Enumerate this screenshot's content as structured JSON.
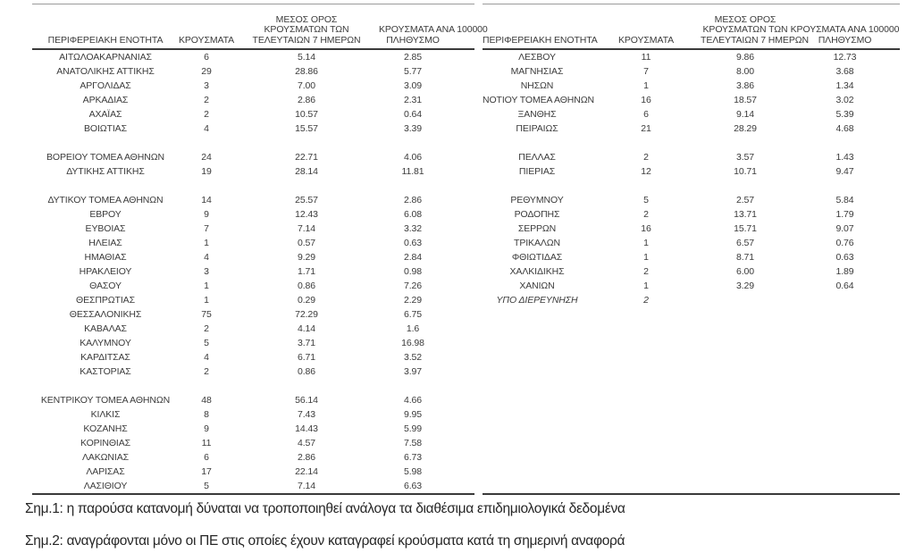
{
  "colors": {
    "background": "#ffffff",
    "table_text": "#3b3b3b",
    "rule_light": "#9a9a9a",
    "rule_dark": "#3a3a3a",
    "note_text": "#262626"
  },
  "table_headers": {
    "regional_unit": "ΠΕΡΙΦΕΡΕΙΑΚΗ ΕΝΟΤΗΤΑ",
    "cases": "ΚΡΟΥΣΜΑΤΑ",
    "avg7_lines": [
      "ΜΕΣΟΣ ΟΡΟΣ",
      "ΚΡΟΥΣΜΑΤΩΝ ΤΩΝ",
      "ΤΕΛΕΥΤΑΙΩΝ 7 ΗΜΕΡΩΝ"
    ],
    "per100k_lines": [
      "ΚΡΟΥΣΜΑΤΑ ΑΝΑ 100000",
      "ΠΛΗΘΥΣΜΟ"
    ]
  },
  "tables": {
    "left": {
      "rows": [
        {
          "region": "ΑΙΤΩΛΟΑΚΑΡΝΑΝΙΑΣ",
          "cases": "6",
          "avg7": "5.14",
          "per100k": "2.85"
        },
        {
          "region": "ΑΝΑΤΟΛΙΚΗΣ ΑΤΤΙΚΗΣ",
          "cases": "29",
          "avg7": "28.86",
          "per100k": "5.77"
        },
        {
          "region": "ΑΡΓΟΛΙΔΑΣ",
          "cases": "3",
          "avg7": "7.00",
          "per100k": "3.09"
        },
        {
          "region": "ΑΡΚΑΔΙΑΣ",
          "cases": "2",
          "avg7": "2.86",
          "per100k": "2.31"
        },
        {
          "region": "ΑΧΑΪΑΣ",
          "cases": "2",
          "avg7": "10.57",
          "per100k": "0.64"
        },
        {
          "region": "ΒΟΙΩΤΙΑΣ",
          "cases": "4",
          "avg7": "15.57",
          "per100k": "3.39"
        },
        null,
        {
          "region": "ΒΟΡΕΙΟΥ ΤΟΜΕΑ ΑΘΗΝΩΝ",
          "cases": "24",
          "avg7": "22.71",
          "per100k": "4.06"
        },
        {
          "region": "ΔΥΤΙΚΗΣ ΑΤΤΙΚΗΣ",
          "cases": "19",
          "avg7": "28.14",
          "per100k": "11.81"
        },
        null,
        {
          "region": "ΔΥΤΙΚΟΥ ΤΟΜΕΑ ΑΘΗΝΩΝ",
          "cases": "14",
          "avg7": "25.57",
          "per100k": "2.86"
        },
        {
          "region": "ΕΒΡΟΥ",
          "cases": "9",
          "avg7": "12.43",
          "per100k": "6.08"
        },
        {
          "region": "ΕΥΒΟΙΑΣ",
          "cases": "7",
          "avg7": "7.14",
          "per100k": "3.32"
        },
        {
          "region": "ΗΛΕΙΑΣ",
          "cases": "1",
          "avg7": "0.57",
          "per100k": "0.63"
        },
        {
          "region": "ΗΜΑΘΙΑΣ",
          "cases": "4",
          "avg7": "9.29",
          "per100k": "2.84"
        },
        {
          "region": "ΗΡΑΚΛΕΙΟΥ",
          "cases": "3",
          "avg7": "1.71",
          "per100k": "0.98"
        },
        {
          "region": "ΘΑΣΟΥ",
          "cases": "1",
          "avg7": "0.86",
          "per100k": "7.26"
        },
        {
          "region": "ΘΕΣΠΡΩΤΙΑΣ",
          "cases": "1",
          "avg7": "0.29",
          "per100k": "2.29"
        },
        {
          "region": "ΘΕΣΣΑΛΟΝΙΚΗΣ",
          "cases": "75",
          "avg7": "72.29",
          "per100k": "6.75"
        },
        {
          "region": "ΚΑΒΑΛΑΣ",
          "cases": "2",
          "avg7": "4.14",
          "per100k": "1.6"
        },
        {
          "region": "ΚΑΛΥΜΝΟΥ",
          "cases": "5",
          "avg7": "3.71",
          "per100k": "16.98"
        },
        {
          "region": "ΚΑΡΔΙΤΣΑΣ",
          "cases": "4",
          "avg7": "6.71",
          "per100k": "3.52"
        },
        {
          "region": "ΚΑΣΤΟΡΙΑΣ",
          "cases": "2",
          "avg7": "0.86",
          "per100k": "3.97"
        },
        null,
        {
          "region": "ΚΕΝΤΡΙΚΟΥ ΤΟΜΕΑ ΑΘΗΝΩΝ",
          "cases": "48",
          "avg7": "56.14",
          "per100k": "4.66"
        },
        {
          "region": "ΚΙΛΚΙΣ",
          "cases": "8",
          "avg7": "7.43",
          "per100k": "9.95"
        },
        {
          "region": "ΚΟΖΑΝΗΣ",
          "cases": "9",
          "avg7": "14.43",
          "per100k": "5.99"
        },
        {
          "region": "ΚΟΡΙΝΘΙΑΣ",
          "cases": "11",
          "avg7": "4.57",
          "per100k": "7.58"
        },
        {
          "region": "ΛΑΚΩΝΙΑΣ",
          "cases": "6",
          "avg7": "2.86",
          "per100k": "6.73"
        },
        {
          "region": "ΛΑΡΙΣΑΣ",
          "cases": "17",
          "avg7": "22.14",
          "per100k": "5.98"
        },
        {
          "region": "ΛΑΣΙΘΙΟΥ",
          "cases": "5",
          "avg7": "7.14",
          "per100k": "6.63"
        }
      ]
    },
    "right": {
      "rows": [
        {
          "region": "ΛΕΣΒΟΥ",
          "cases": "11",
          "avg7": "9.86",
          "per100k": "12.73"
        },
        {
          "region": "ΜΑΓΝΗΣΙΑΣ",
          "cases": "7",
          "avg7": "8.00",
          "per100k": "3.68"
        },
        {
          "region": "ΝΗΣΩΝ",
          "cases": "1",
          "avg7": "3.86",
          "per100k": "1.34"
        },
        {
          "region": "ΝΟΤΙΟΥ ΤΟΜΕΑ ΑΘΗΝΩΝ",
          "cases": "16",
          "avg7": "18.57",
          "per100k": "3.02"
        },
        {
          "region": "ΞΑΝΘΗΣ",
          "cases": "6",
          "avg7": "9.14",
          "per100k": "5.39"
        },
        {
          "region": "ΠΕΙΡΑΙΩΣ",
          "cases": "21",
          "avg7": "28.29",
          "per100k": "4.68"
        },
        null,
        {
          "region": "ΠΕΛΛΑΣ",
          "cases": "2",
          "avg7": "3.57",
          "per100k": "1.43"
        },
        {
          "region": "ΠΙΕΡΙΑΣ",
          "cases": "12",
          "avg7": "10.71",
          "per100k": "9.47"
        },
        null,
        {
          "region": "ΡΕΘΥΜΝΟΥ",
          "cases": "5",
          "avg7": "2.57",
          "per100k": "5.84"
        },
        {
          "region": "ΡΟΔΟΠΗΣ",
          "cases": "2",
          "avg7": "13.71",
          "per100k": "1.79"
        },
        {
          "region": "ΣΕΡΡΩΝ",
          "cases": "16",
          "avg7": "15.71",
          "per100k": "9.07"
        },
        {
          "region": "ΤΡΙΚΑΛΩΝ",
          "cases": "1",
          "avg7": "6.57",
          "per100k": "0.76"
        },
        {
          "region": "ΦΘΙΩΤΙΔΑΣ",
          "cases": "1",
          "avg7": "8.71",
          "per100k": "0.63"
        },
        {
          "region": "ΧΑΛΚΙΔΙΚΗΣ",
          "cases": "2",
          "avg7": "6.00",
          "per100k": "1.89"
        },
        {
          "region": "ΧΑΝΙΩΝ",
          "cases": "1",
          "avg7": "3.29",
          "per100k": "0.64"
        },
        {
          "region": "ΥΠΟ ΔΙΕΡΕΥΝΗΣΗ",
          "cases": "2",
          "avg7": "",
          "per100k": "",
          "italic": true
        }
      ]
    }
  },
  "notes": [
    "Σημ.1: η παρούσα κατανομή δύναται να τροποποιηθεί ανάλογα τα διαθέσιμα επιδημιολογικά δεδομένα",
    "Σημ.2: αναγράφονται μόνο οι ΠΕ στις οποίες έχουν καταγραφεί κρούσματα κατά τη σημερινή αναφορά"
  ]
}
